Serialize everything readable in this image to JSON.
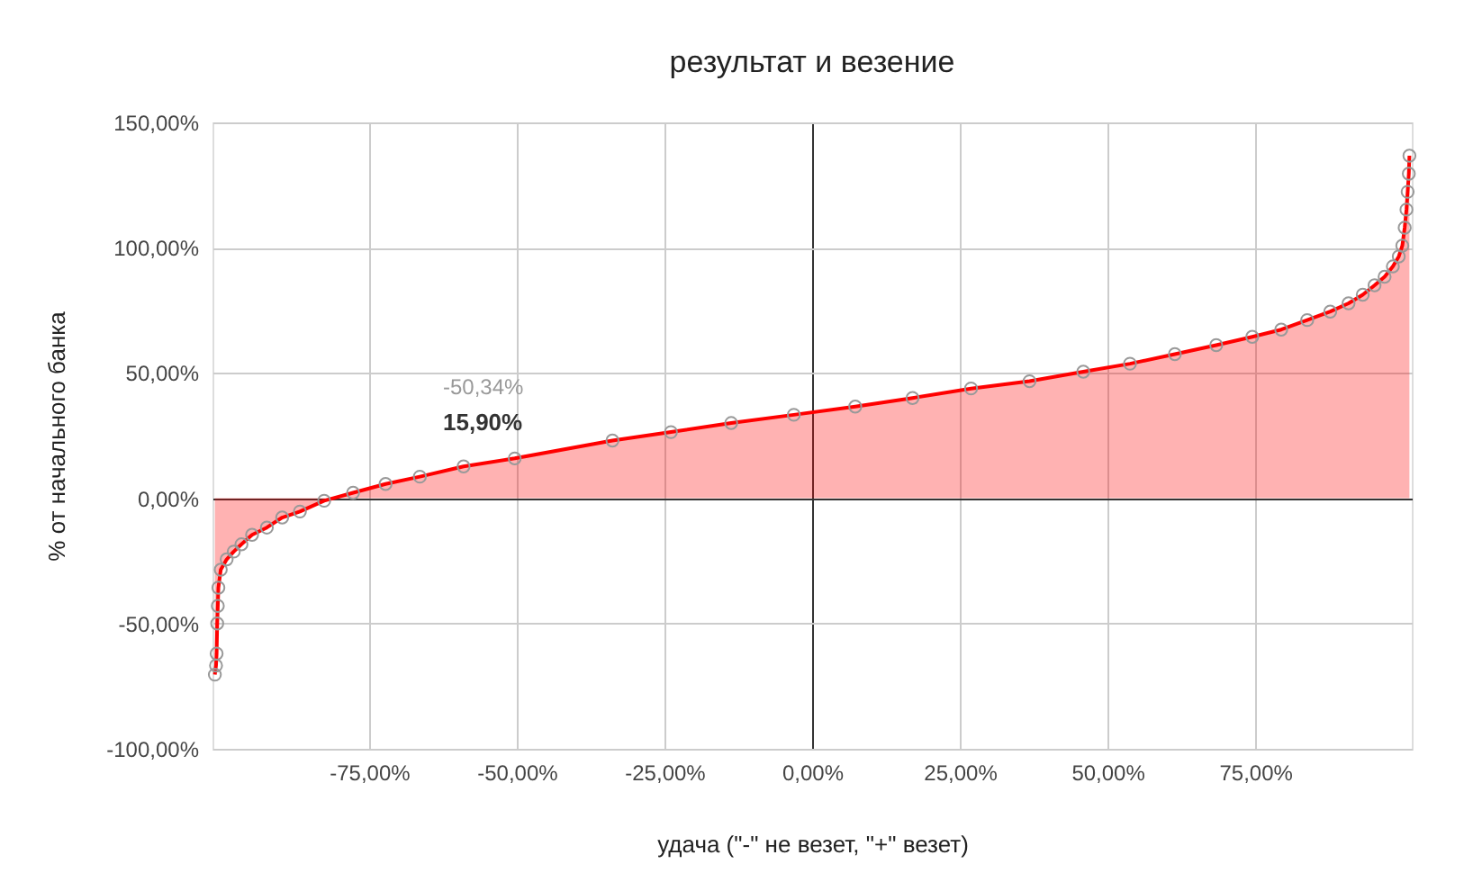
{
  "chart_data": {
    "type": "area",
    "title": "результат и везение",
    "xlabel": "удача (\"-\" не везет, \"+\" везет)",
    "ylabel": "% от начального банка",
    "x": [
      -101.1,
      -100.9,
      -100.8,
      -100.7,
      -100.6,
      -100.5,
      -100.1,
      -99.1,
      -97.9,
      -96.6,
      -94.8,
      -92.3,
      -89.7,
      -86.7,
      -82.6,
      -77.7,
      -72.2,
      -66.4,
      -59,
      -50.34,
      -33.8,
      -23.9,
      -13.7,
      -3.1,
      7.3,
      17,
      26.9,
      36.8,
      45.9,
      53.8,
      61.4,
      68.4,
      74.5,
      79.4,
      83.8,
      87.7,
      90.8,
      93.2,
      95.2,
      96.9,
      98.3,
      99.3,
      99.9,
      100.3,
      100.6,
      100.8,
      101,
      101.1
    ],
    "series": [
      {
        "color": "#ff0000",
        "values": [
          -70.4,
          -66.8,
          -62,
          -50,
          -43,
          -35.7,
          -28.5,
          -24.4,
          -21.3,
          -18.4,
          -14.6,
          -11.7,
          -7.7,
          -5.3,
          -1,
          2.2,
          5.7,
          8.6,
          12.7,
          15.9,
          23,
          26.4,
          30,
          33.3,
          36.6,
          40,
          43.8,
          46.7,
          50.5,
          53.7,
          57.5,
          61.1,
          64.4,
          67.3,
          71.1,
          74.5,
          77.8,
          81.2,
          85,
          88.4,
          92.5,
          96.5,
          100.8,
          108,
          115.2,
          122.3,
          129.5,
          136.7
        ]
      }
    ],
    "xlim": [
      -101.5,
      101.5
    ],
    "xticks": [
      {
        "value": -75,
        "label": "-75,00%"
      },
      {
        "value": -50,
        "label": "-50,00%"
      },
      {
        "value": -25,
        "label": "-25,00%"
      },
      {
        "value": 0,
        "label": "0,00%"
      },
      {
        "value": 25,
        "label": "25,00%"
      },
      {
        "value": 50,
        "label": "50,00%"
      },
      {
        "value": 75,
        "label": "75,00%"
      }
    ],
    "ylim": [
      -100,
      150
    ],
    "yticks": [
      {
        "value": -100,
        "label": "-100,00%"
      },
      {
        "value": -50,
        "label": "-50,00%"
      },
      {
        "value": 0,
        "label": "0,00%"
      },
      {
        "value": 50,
        "label": "50,00%"
      },
      {
        "value": 100,
        "label": "100,00%"
      },
      {
        "value": 150,
        "label": "150,00%"
      }
    ],
    "annotations": [
      "-50,34%",
      "15,90%"
    ],
    "grid": true,
    "marker": "circle",
    "line_style": "solid"
  }
}
